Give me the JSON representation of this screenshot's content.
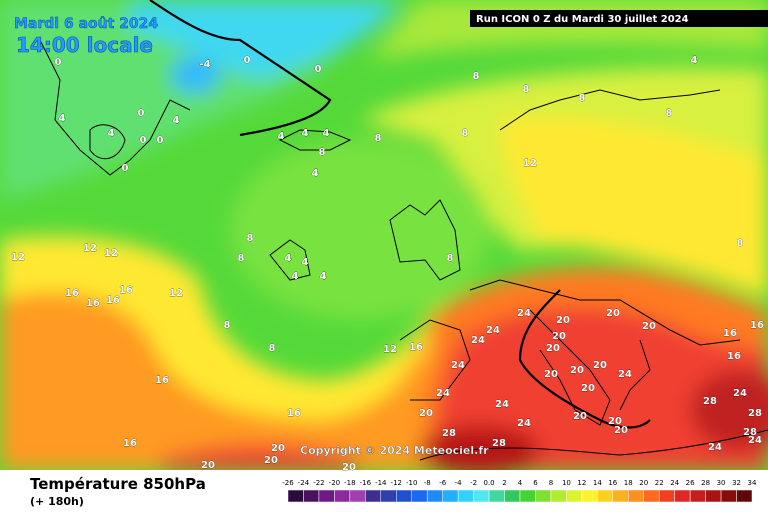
{
  "header": {
    "title": "Mardi 6 août 2024",
    "subtitle": "14:00 locale",
    "run": "Run ICON 0 Z du Mardi 30 juillet 2024",
    "copyright": "Copyright © 2024 Meteociel.fr"
  },
  "footer": {
    "variable": "Température 850hPa",
    "lead": "(+ 180h)"
  },
  "scale": {
    "ticks": [
      -26,
      -24,
      -22,
      -20,
      -18,
      -16,
      -14,
      -12,
      -10,
      -8,
      -6,
      -4,
      -2,
      {
        "value": 0,
        "label": "0.0"
      },
      2,
      4,
      6,
      8,
      10,
      12,
      14,
      16,
      18,
      20,
      22,
      24,
      26,
      28,
      30,
      32,
      34
    ],
    "colors": [
      "#2b0b3f",
      "#4a1160",
      "#6a1a80",
      "#8c2a9c",
      "#a040b0",
      "#3c2f8f",
      "#2f3fb0",
      "#2050d0",
      "#1a6af0",
      "#1e8cff",
      "#20b0ff",
      "#30d0ff",
      "#50e8f0",
      "#40d8a0",
      "#30c860",
      "#44d630",
      "#80e030",
      "#b0ec30",
      "#dcf430",
      "#fff030",
      "#ffd020",
      "#ffb020",
      "#ff9020",
      "#ff6a20",
      "#f04020",
      "#e02828",
      "#c81e1e",
      "#a81414",
      "#880c0c",
      "#600808"
    ]
  },
  "isotherms": [
    -4,
    0,
    0,
    4,
    0,
    4,
    0,
    0,
    0,
    4,
    0,
    4,
    4,
    4,
    8,
    4,
    8,
    8,
    8,
    8,
    8,
    8,
    4,
    12,
    8,
    8,
    4,
    4,
    4,
    4,
    8,
    8,
    12,
    12,
    12,
    16,
    16,
    16,
    16,
    12,
    8,
    8,
    12,
    16,
    20,
    20,
    20,
    16,
    24,
    24,
    24,
    20,
    20,
    24,
    20,
    20,
    20,
    24,
    20,
    24,
    20,
    24,
    28,
    28,
    24,
    20,
    20,
    20,
    28,
    28,
    24,
    16,
    16,
    16,
    20,
    20,
    20,
    20,
    24,
    28,
    24,
    16,
    16
  ]
}
